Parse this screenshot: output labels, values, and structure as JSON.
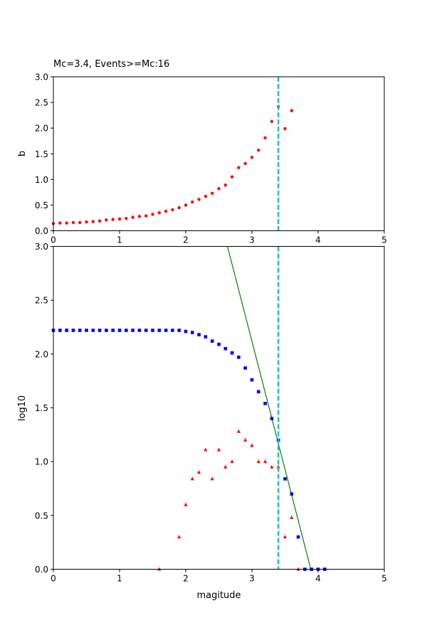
{
  "chart_data": [
    {
      "type": "scatter",
      "title": "Mc=3.4, Events>=Mc:16",
      "xlabel": "",
      "ylabel": "b",
      "xlim": [
        0,
        5
      ],
      "ylim": [
        0,
        3
      ],
      "xticks": [
        "0",
        "1",
        "2",
        "3",
        "4",
        "5"
      ],
      "yticks": [
        "0.0",
        "0.5",
        "1.0",
        "1.5",
        "2.0",
        "2.5",
        "3.0"
      ],
      "grid": false,
      "series": [
        {
          "marker": "circle",
          "color": "#ff0000",
          "x": [
            0.0,
            0.1,
            0.2,
            0.3,
            0.4,
            0.5,
            0.6,
            0.7,
            0.8,
            0.9,
            1.0,
            1.1,
            1.2,
            1.3,
            1.4,
            1.5,
            1.6,
            1.7,
            1.8,
            1.9,
            2.0,
            2.1,
            2.2,
            2.3,
            2.4,
            2.5,
            2.6,
            2.7,
            2.8,
            2.9,
            3.0,
            3.1,
            3.2,
            3.3,
            3.4,
            3.5,
            3.6
          ],
          "y": [
            0.14,
            0.15,
            0.15,
            0.16,
            0.16,
            0.17,
            0.18,
            0.19,
            0.21,
            0.22,
            0.23,
            0.24,
            0.26,
            0.28,
            0.29,
            0.32,
            0.35,
            0.38,
            0.41,
            0.45,
            0.5,
            0.56,
            0.61,
            0.67,
            0.73,
            0.82,
            0.89,
            1.05,
            1.23,
            1.31,
            1.43,
            1.57,
            1.81,
            2.13,
            2.42,
            1.99,
            2.34
          ]
        }
      ],
      "vline": {
        "x": 3.4,
        "color": "#17becf",
        "style": "dashed"
      }
    },
    {
      "type": "scatter",
      "title": "",
      "xlabel": "magitude",
      "ylabel": "log10",
      "xlim": [
        0,
        5
      ],
      "ylim": [
        0,
        3
      ],
      "xticks": [
        "0",
        "1",
        "2",
        "3",
        "4",
        "5"
      ],
      "yticks": [
        "0.0",
        "0.5",
        "1.0",
        "1.5",
        "2.0",
        "2.5",
        "3.0"
      ],
      "grid": false,
      "series": [
        {
          "marker": "square",
          "color": "#0000ff",
          "x": [
            0.0,
            0.1,
            0.2,
            0.3,
            0.4,
            0.5,
            0.6,
            0.7,
            0.8,
            0.9,
            1.0,
            1.1,
            1.2,
            1.3,
            1.4,
            1.5,
            1.6,
            1.7,
            1.8,
            1.9,
            2.0,
            2.1,
            2.2,
            2.3,
            2.4,
            2.5,
            2.6,
            2.7,
            2.8,
            2.9,
            3.0,
            3.1,
            3.2,
            3.3,
            3.4,
            3.5,
            3.6,
            3.7,
            3.8,
            3.9,
            4.0,
            4.1
          ],
          "y": [
            2.22,
            2.22,
            2.22,
            2.22,
            2.22,
            2.22,
            2.22,
            2.22,
            2.22,
            2.22,
            2.22,
            2.22,
            2.22,
            2.22,
            2.22,
            2.22,
            2.22,
            2.22,
            2.22,
            2.22,
            2.21,
            2.2,
            2.18,
            2.16,
            2.12,
            2.09,
            2.05,
            2.01,
            1.97,
            1.87,
            1.76,
            1.65,
            1.54,
            1.4,
            1.2,
            0.84,
            0.7,
            0.3,
            0.0,
            0.0,
            0.0,
            0.0
          ]
        },
        {
          "marker": "triangle",
          "color": "#ff0000",
          "x": [
            1.6,
            1.9,
            2.0,
            2.1,
            2.2,
            2.3,
            2.4,
            2.5,
            2.6,
            2.7,
            2.8,
            2.9,
            3.0,
            3.1,
            3.2,
            3.3,
            3.4,
            3.5,
            3.6,
            3.7
          ],
          "y": [
            0.0,
            0.3,
            0.6,
            0.84,
            0.9,
            1.11,
            0.84,
            1.11,
            0.95,
            1.0,
            1.28,
            1.2,
            1.15,
            1.0,
            1.0,
            0.95,
            0.95,
            0.3,
            0.48,
            0.0
          ]
        }
      ],
      "fit_line": {
        "x": [
          2.63,
          3.89
        ],
        "y": [
          3.0,
          0.0
        ],
        "color": "#008000"
      },
      "vline": {
        "x": 3.4,
        "color": "#17becf",
        "style": "dashed"
      }
    }
  ]
}
